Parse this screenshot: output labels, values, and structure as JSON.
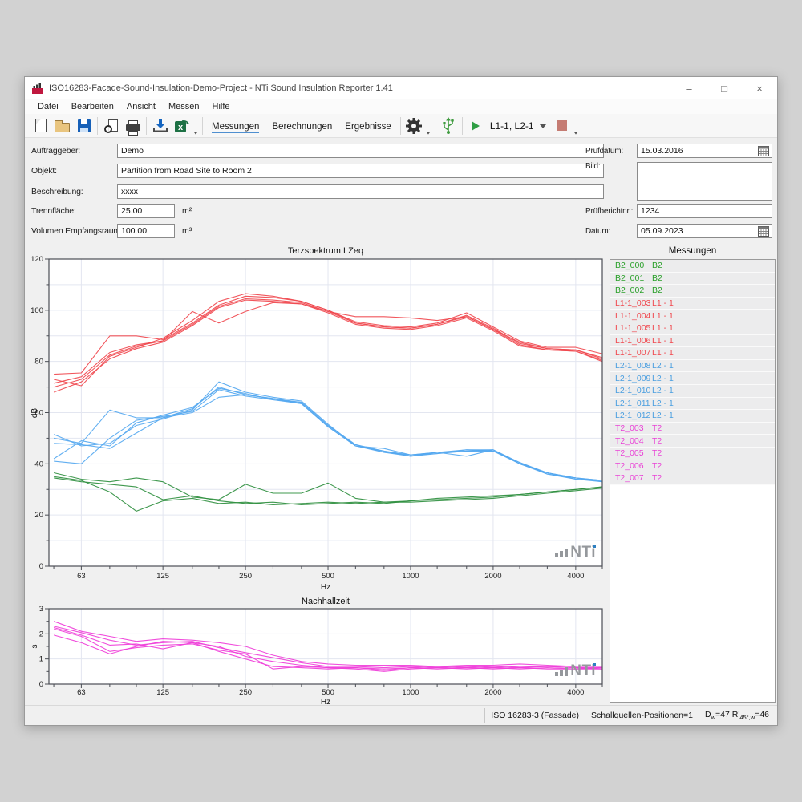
{
  "window": {
    "title": "ISO16283-Facade-Sound-Insulation-Demo-Project - NTi Sound Insulation Reporter 1.41",
    "controls": {
      "minimize": "–",
      "maximize": "□",
      "close": "×"
    }
  },
  "menu": {
    "items": [
      "Datei",
      "Bearbeiten",
      "Ansicht",
      "Messen",
      "Hilfe"
    ]
  },
  "toolbar": {
    "icons": [
      "new-document",
      "open-folder",
      "save",
      "print-preview",
      "print",
      "import-data",
      "export-excel",
      "settings-gear",
      "usb-device",
      "play",
      "stop"
    ],
    "tabs": [
      {
        "label": "Messungen",
        "active": true
      },
      {
        "label": "Berechnungen",
        "active": false
      },
      {
        "label": "Ergebnisse",
        "active": false
      }
    ],
    "run_selector": "L1-1, L2-1"
  },
  "form": {
    "left": [
      {
        "label": "Auftraggeber:",
        "value": "Demo"
      },
      {
        "label": "Objekt:",
        "value": "Partition from Road Site to Room 2"
      },
      {
        "label": "Beschreibung:",
        "value": "xxxx"
      },
      {
        "label": "Trennfläche:",
        "value": "25.00",
        "unit": "m²"
      },
      {
        "label": "Volumen Empfangsraum:",
        "value": "100.00",
        "unit": "m³"
      }
    ],
    "right": [
      {
        "label": "Prüfdatum:",
        "value": "15.03.2016"
      },
      {
        "label": "Bild:",
        "value": ""
      },
      {
        "label": "Prüfberichtnr.:",
        "value": "1234"
      },
      {
        "label": "Datum:",
        "value": "05.09.2023"
      }
    ]
  },
  "measurements_panel": {
    "title": "Messungen",
    "colors": {
      "B2": "#2aa02a",
      "L1-1": "#f0484e",
      "L2-1": "#4b9fe0",
      "T2": "#e93fd6"
    },
    "rows": [
      {
        "id": "B2_000",
        "group": "B2",
        "key": "B2"
      },
      {
        "id": "B2_001",
        "group": "B2",
        "key": "B2"
      },
      {
        "id": "B2_002",
        "group": "B2",
        "key": "B2"
      },
      {
        "id": "L1-1_003",
        "group": "L1 - 1",
        "key": "L1-1"
      },
      {
        "id": "L1-1_004",
        "group": "L1 - 1",
        "key": "L1-1"
      },
      {
        "id": "L1-1_005",
        "group": "L1 - 1",
        "key": "L1-1"
      },
      {
        "id": "L1-1_006",
        "group": "L1 - 1",
        "key": "L1-1"
      },
      {
        "id": "L1-1_007",
        "group": "L1 - 1",
        "key": "L1-1"
      },
      {
        "id": "L2-1_008",
        "group": "L2 - 1",
        "key": "L2-1"
      },
      {
        "id": "L2-1_009",
        "group": "L2 - 1",
        "key": "L2-1"
      },
      {
        "id": "L2-1_010",
        "group": "L2 - 1",
        "key": "L2-1"
      },
      {
        "id": "L2-1_011",
        "group": "L2 - 1",
        "key": "L2-1"
      },
      {
        "id": "L2-1_012",
        "group": "L2 - 1",
        "key": "L2-1"
      },
      {
        "id": "T2_003",
        "group": "T2",
        "key": "T2"
      },
      {
        "id": "T2_004",
        "group": "T2",
        "key": "T2"
      },
      {
        "id": "T2_005",
        "group": "T2",
        "key": "T2"
      },
      {
        "id": "T2_006",
        "group": "T2",
        "key": "T2"
      },
      {
        "id": "T2_007",
        "group": "T2",
        "key": "T2"
      }
    ]
  },
  "watermark": "NTi",
  "chart_data": [
    {
      "type": "line",
      "title": "Terzspektrum LZeq",
      "xlabel": "Hz",
      "ylabel": "dB",
      "x_scale": "log",
      "x_range": [
        48,
        5000
      ],
      "ylim": [
        0,
        120
      ],
      "y_grid": 10,
      "y_tick": 10,
      "y_label_step": 20,
      "x_ticks_labeled": [
        63,
        125,
        250,
        500,
        1000,
        2000,
        4000
      ],
      "frequencies": [
        50,
        63,
        80,
        100,
        125,
        160,
        200,
        250,
        315,
        400,
        500,
        630,
        800,
        1000,
        1250,
        1600,
        2000,
        2500,
        3150,
        4000,
        5000
      ],
      "series": [
        {
          "name": "L1-1_003",
          "color": "#f0484e",
          "values": [
            75,
            75.5,
            90,
            90,
            88.5,
            95,
            102,
            105.5,
            105,
            103.5,
            100,
            95.5,
            94,
            93.5,
            95,
            99,
            93.5,
            88,
            85.5,
            85.5,
            83
          ]
        },
        {
          "name": "L1-1_004",
          "color": "#f0484e",
          "values": [
            73,
            70.5,
            82,
            85.5,
            89,
            96,
            103.5,
            106.5,
            105.5,
            103.5,
            100,
            95,
            93.5,
            93,
            94.5,
            98,
            93,
            87,
            85,
            84.5,
            81.5
          ]
        },
        {
          "name": "L1-1_005",
          "color": "#f0484e",
          "values": [
            71.5,
            74,
            83.5,
            86.5,
            88,
            94.5,
            101.5,
            104.5,
            104,
            103,
            99.5,
            97.5,
            97.5,
            97,
            96,
            97.5,
            92.5,
            86.5,
            84.5,
            84,
            80.5
          ]
        },
        {
          "name": "L1-1_006",
          "color": "#f0484e",
          "values": [
            68,
            72,
            81,
            85,
            87.5,
            94,
            101,
            104,
            103.5,
            102.5,
            99,
            94.5,
            93,
            92.5,
            94,
            97,
            92,
            86,
            84.5,
            84,
            80
          ]
        },
        {
          "name": "L1-1_007",
          "color": "#f0484e",
          "values": [
            70,
            73,
            82.5,
            86,
            88,
            99.5,
            95,
            99.5,
            103,
            102.5,
            99.5,
            95,
            93.5,
            93,
            94.5,
            97.5,
            92.5,
            87.5,
            85,
            84.5,
            81
          ]
        },
        {
          "name": "L2-1_008",
          "color": "#55a8f0",
          "values": [
            50,
            48,
            61,
            58,
            58,
            60,
            66,
            67,
            65.5,
            64,
            55,
            47.5,
            45,
            43.5,
            44.5,
            45.5,
            45.5,
            40.5,
            36.5,
            34.5,
            33.5
          ]
        },
        {
          "name": "L2-1_009",
          "color": "#55a8f0",
          "values": [
            51.5,
            47,
            48,
            55,
            57.5,
            61,
            72,
            68,
            66,
            64.5,
            55.5,
            47,
            44.5,
            43,
            44,
            45,
            45,
            40,
            36,
            34,
            33
          ]
        },
        {
          "name": "L2-1_010",
          "color": "#55a8f0",
          "values": [
            42,
            49,
            47,
            56,
            59,
            62,
            69.5,
            67.5,
            65,
            63.5,
            54.5,
            47,
            46,
            43.5,
            44.5,
            43,
            45.5,
            40,
            36.5,
            34.5,
            33.5
          ]
        },
        {
          "name": "L2-1_011",
          "color": "#55a8f0",
          "values": [
            41,
            40,
            50,
            57,
            58.5,
            60.5,
            69,
            66.5,
            65,
            64,
            55,
            47.5,
            44.5,
            43.5,
            44,
            45.5,
            45,
            40.5,
            36,
            34.5,
            33
          ]
        },
        {
          "name": "L2-1_012",
          "color": "#55a8f0",
          "values": [
            48,
            47.5,
            46,
            52,
            58,
            61.5,
            70,
            67,
            65.5,
            63.5,
            54.5,
            47,
            45,
            43,
            44.5,
            45,
            45.5,
            40,
            36.5,
            34,
            33.5
          ]
        },
        {
          "name": "B2_000",
          "color": "#2f8f3f",
          "values": [
            36.5,
            34,
            33,
            34.5,
            33,
            27,
            26,
            32,
            28.5,
            28.5,
            32.5,
            26.5,
            25,
            25.5,
            26,
            26.5,
            27,
            28,
            29,
            30,
            31
          ]
        },
        {
          "name": "B2_001",
          "color": "#2f8f3f",
          "values": [
            35,
            33.5,
            29,
            21.5,
            25.5,
            26.5,
            24.5,
            25,
            24,
            24.5,
            25,
            24.5,
            25,
            25,
            25.5,
            26,
            26.5,
            27.5,
            28.5,
            29.5,
            30.5
          ]
        },
        {
          "name": "B2_002",
          "color": "#2f8f3f",
          "values": [
            34.5,
            33,
            32,
            31,
            26,
            27.5,
            25.5,
            24.5,
            25,
            24,
            24.5,
            25,
            24.5,
            25.5,
            26.5,
            27,
            27.5,
            28,
            29,
            30,
            31
          ]
        }
      ]
    },
    {
      "type": "line",
      "title": "Nachhallzeit",
      "xlabel": "Hz",
      "ylabel": "s",
      "x_scale": "log",
      "x_range": [
        48,
        5000
      ],
      "ylim": [
        0,
        3
      ],
      "y_grid": 1,
      "y_tick": 0.5,
      "y_label_step": 1,
      "x_ticks_labeled": [
        63,
        125,
        250,
        500,
        1000,
        2000,
        4000
      ],
      "frequencies": [
        50,
        63,
        80,
        100,
        125,
        160,
        200,
        250,
        315,
        400,
        500,
        630,
        800,
        1000,
        1250,
        1600,
        2000,
        2500,
        3150,
        4000,
        5000
      ],
      "series": [
        {
          "name": "T2_003",
          "color": "#ef3ed9",
          "values": [
            2.5,
            2.1,
            1.9,
            1.7,
            1.8,
            1.75,
            1.65,
            1.5,
            1.15,
            0.9,
            0.8,
            0.75,
            0.75,
            0.75,
            0.7,
            0.75,
            0.75,
            0.8,
            0.75,
            0.7,
            0.7
          ]
        },
        {
          "name": "T2_004",
          "color": "#ef3ed9",
          "values": [
            2.3,
            2.05,
            1.75,
            1.55,
            1.65,
            1.7,
            1.45,
            1.25,
            1.05,
            0.85,
            0.7,
            0.7,
            0.65,
            0.7,
            0.65,
            0.7,
            0.65,
            0.7,
            0.7,
            0.65,
            0.65
          ]
        },
        {
          "name": "T2_005",
          "color": "#ef3ed9",
          "values": [
            2.25,
            1.95,
            1.55,
            1.6,
            1.4,
            1.65,
            1.5,
            1.1,
            0.9,
            0.75,
            0.65,
            0.65,
            0.6,
            0.65,
            0.6,
            0.65,
            0.6,
            0.65,
            0.6,
            0.6,
            0.6
          ]
        },
        {
          "name": "T2_006",
          "color": "#ef3ed9",
          "values": [
            2.2,
            1.9,
            1.3,
            1.45,
            1.55,
            1.6,
            1.35,
            1.2,
            0.6,
            0.7,
            0.65,
            0.6,
            0.5,
            0.6,
            0.65,
            0.6,
            0.65,
            0.6,
            0.65,
            0.6,
            0.65
          ]
        },
        {
          "name": "T2_007",
          "color": "#ef3ed9",
          "values": [
            1.95,
            1.65,
            1.2,
            1.5,
            1.7,
            1.65,
            1.3,
            1.0,
            0.7,
            0.65,
            0.6,
            0.65,
            0.55,
            0.65,
            0.7,
            0.65,
            0.7,
            0.65,
            0.7,
            0.65,
            0.6
          ]
        }
      ]
    }
  ],
  "status_bar": {
    "iso": "ISO 16283-3 (Fassade)",
    "positions": "Schallquellen-Positionen=1",
    "dw": {
      "t1": "D",
      "sub1": "w",
      "t2": "=47  R'",
      "sub2": "45°,w",
      "t3": "=46"
    }
  }
}
